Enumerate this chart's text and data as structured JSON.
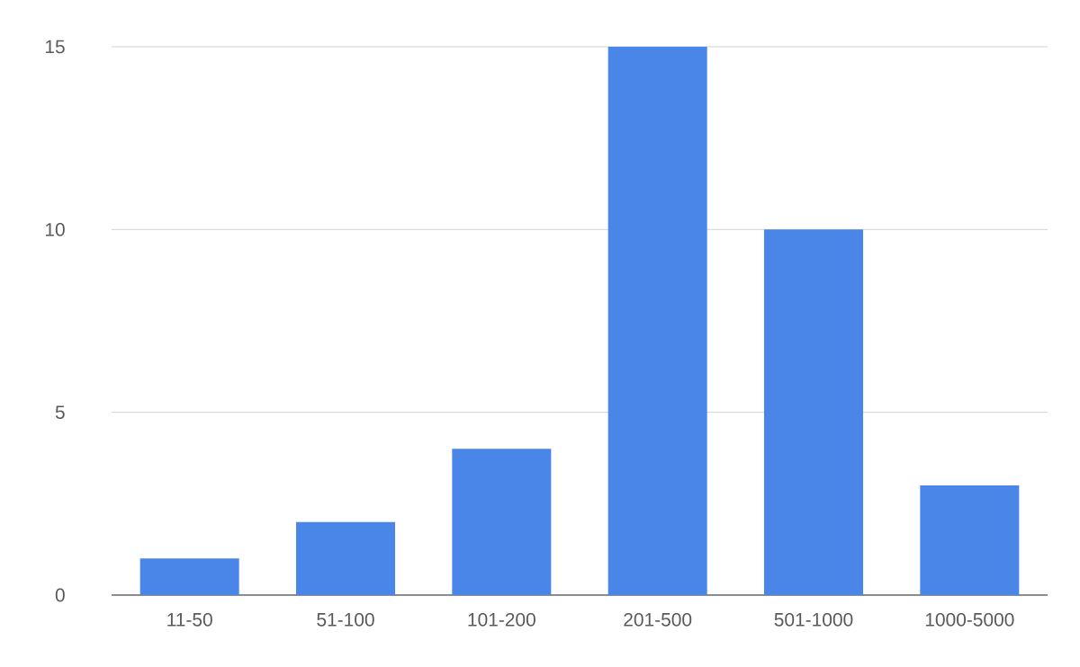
{
  "chart_data": {
    "type": "bar",
    "categories": [
      "11-50",
      "51-100",
      "101-200",
      "201-500",
      "501-1000",
      "1000-5000"
    ],
    "values": [
      1,
      2,
      4,
      15,
      10,
      3
    ],
    "color": "#4a86e8",
    "ylim": [
      0,
      15
    ],
    "yticks": [
      0,
      5,
      10,
      15
    ],
    "grid": "y"
  }
}
